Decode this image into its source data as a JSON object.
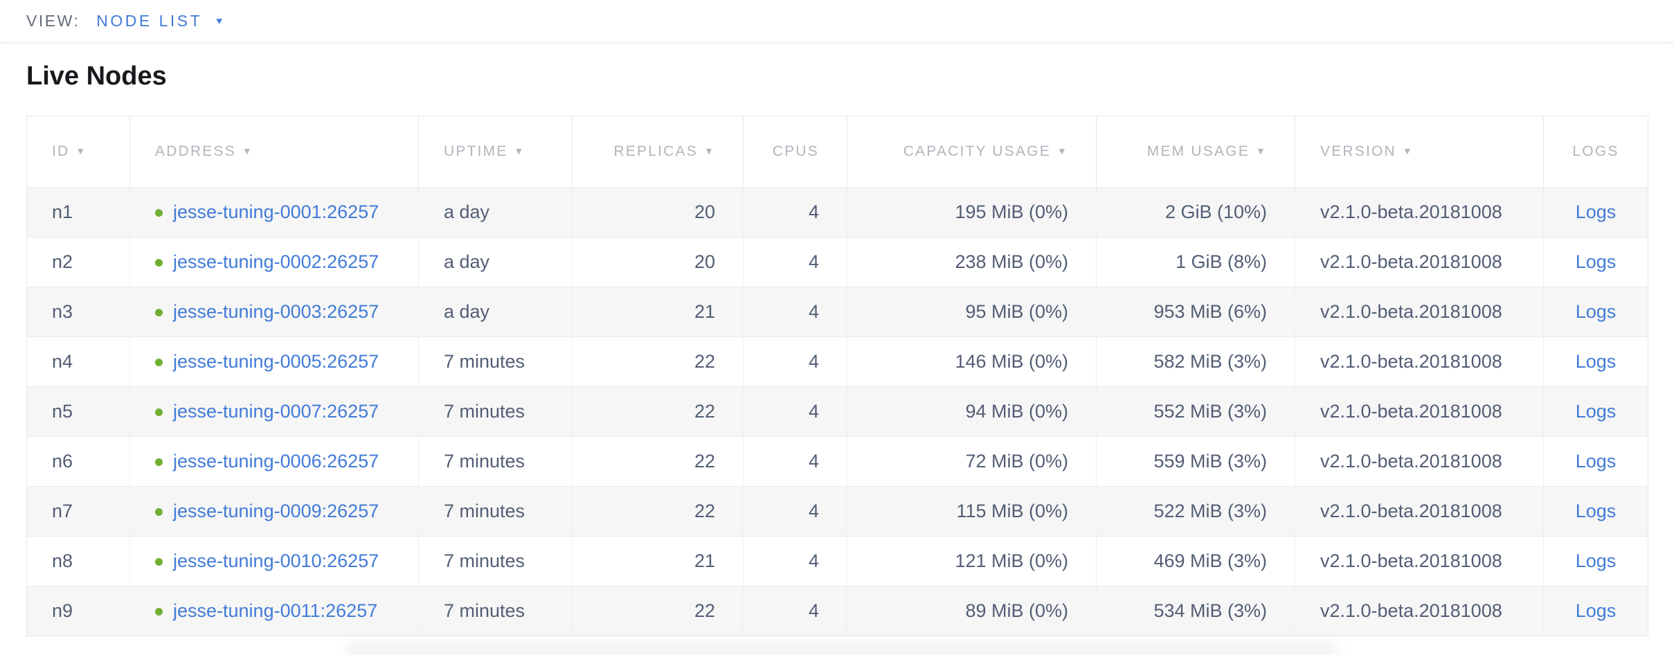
{
  "view_bar": {
    "label": "VIEW:",
    "selected": "NODE LIST",
    "caret": "▼"
  },
  "page": {
    "title": "Live Nodes"
  },
  "table": {
    "sort_arrow": "▼",
    "columns": [
      {
        "label": "ID",
        "sortable": true,
        "align": "left"
      },
      {
        "label": "ADDRESS",
        "sortable": true,
        "align": "left"
      },
      {
        "label": "UPTIME",
        "sortable": true,
        "align": "left"
      },
      {
        "label": "REPLICAS",
        "sortable": true,
        "align": "right"
      },
      {
        "label": "CPUS",
        "sortable": false,
        "align": "right"
      },
      {
        "label": "CAPACITY USAGE",
        "sortable": true,
        "align": "right"
      },
      {
        "label": "MEM USAGE",
        "sortable": true,
        "align": "right"
      },
      {
        "label": "VERSION",
        "sortable": true,
        "align": "left"
      },
      {
        "label": "LOGS",
        "sortable": false,
        "align": "center"
      }
    ],
    "rows": [
      {
        "id": "n1",
        "address": "jesse-tuning-0001:26257",
        "status": "live",
        "uptime": "a day",
        "replicas": "20",
        "cpus": "4",
        "capacity_usage": "195 MiB (0%)",
        "mem_usage": "2 GiB (10%)",
        "version": "v2.1.0-beta.20181008",
        "logs": "Logs"
      },
      {
        "id": "n2",
        "address": "jesse-tuning-0002:26257",
        "status": "live",
        "uptime": "a day",
        "replicas": "20",
        "cpus": "4",
        "capacity_usage": "238 MiB (0%)",
        "mem_usage": "1 GiB (8%)",
        "version": "v2.1.0-beta.20181008",
        "logs": "Logs"
      },
      {
        "id": "n3",
        "address": "jesse-tuning-0003:26257",
        "status": "live",
        "uptime": "a day",
        "replicas": "21",
        "cpus": "4",
        "capacity_usage": "95 MiB (0%)",
        "mem_usage": "953 MiB (6%)",
        "version": "v2.1.0-beta.20181008",
        "logs": "Logs"
      },
      {
        "id": "n4",
        "address": "jesse-tuning-0005:26257",
        "status": "live",
        "uptime": "7 minutes",
        "replicas": "22",
        "cpus": "4",
        "capacity_usage": "146 MiB (0%)",
        "mem_usage": "582 MiB (3%)",
        "version": "v2.1.0-beta.20181008",
        "logs": "Logs"
      },
      {
        "id": "n5",
        "address": "jesse-tuning-0007:26257",
        "status": "live",
        "uptime": "7 minutes",
        "replicas": "22",
        "cpus": "4",
        "capacity_usage": "94 MiB (0%)",
        "mem_usage": "552 MiB (3%)",
        "version": "v2.1.0-beta.20181008",
        "logs": "Logs"
      },
      {
        "id": "n6",
        "address": "jesse-tuning-0006:26257",
        "status": "live",
        "uptime": "7 minutes",
        "replicas": "22",
        "cpus": "4",
        "capacity_usage": "72 MiB (0%)",
        "mem_usage": "559 MiB (3%)",
        "version": "v2.1.0-beta.20181008",
        "logs": "Logs"
      },
      {
        "id": "n7",
        "address": "jesse-tuning-0009:26257",
        "status": "live",
        "uptime": "7 minutes",
        "replicas": "22",
        "cpus": "4",
        "capacity_usage": "115 MiB (0%)",
        "mem_usage": "522 MiB (3%)",
        "version": "v2.1.0-beta.20181008",
        "logs": "Logs"
      },
      {
        "id": "n8",
        "address": "jesse-tuning-0010:26257",
        "status": "live",
        "uptime": "7 minutes",
        "replicas": "21",
        "cpus": "4",
        "capacity_usage": "121 MiB (0%)",
        "mem_usage": "469 MiB (3%)",
        "version": "v2.1.0-beta.20181008",
        "logs": "Logs"
      },
      {
        "id": "n9",
        "address": "jesse-tuning-0011:26257",
        "status": "live",
        "uptime": "7 minutes",
        "replicas": "22",
        "cpus": "4",
        "capacity_usage": "89 MiB (0%)",
        "mem_usage": "534 MiB (3%)",
        "version": "v2.1.0-beta.20181008",
        "logs": "Logs"
      }
    ]
  },
  "colors": {
    "accent_blue": "#417bd8",
    "live_green": "#70af33",
    "header_gray": "#b1b5bb",
    "text": "#525d75"
  }
}
